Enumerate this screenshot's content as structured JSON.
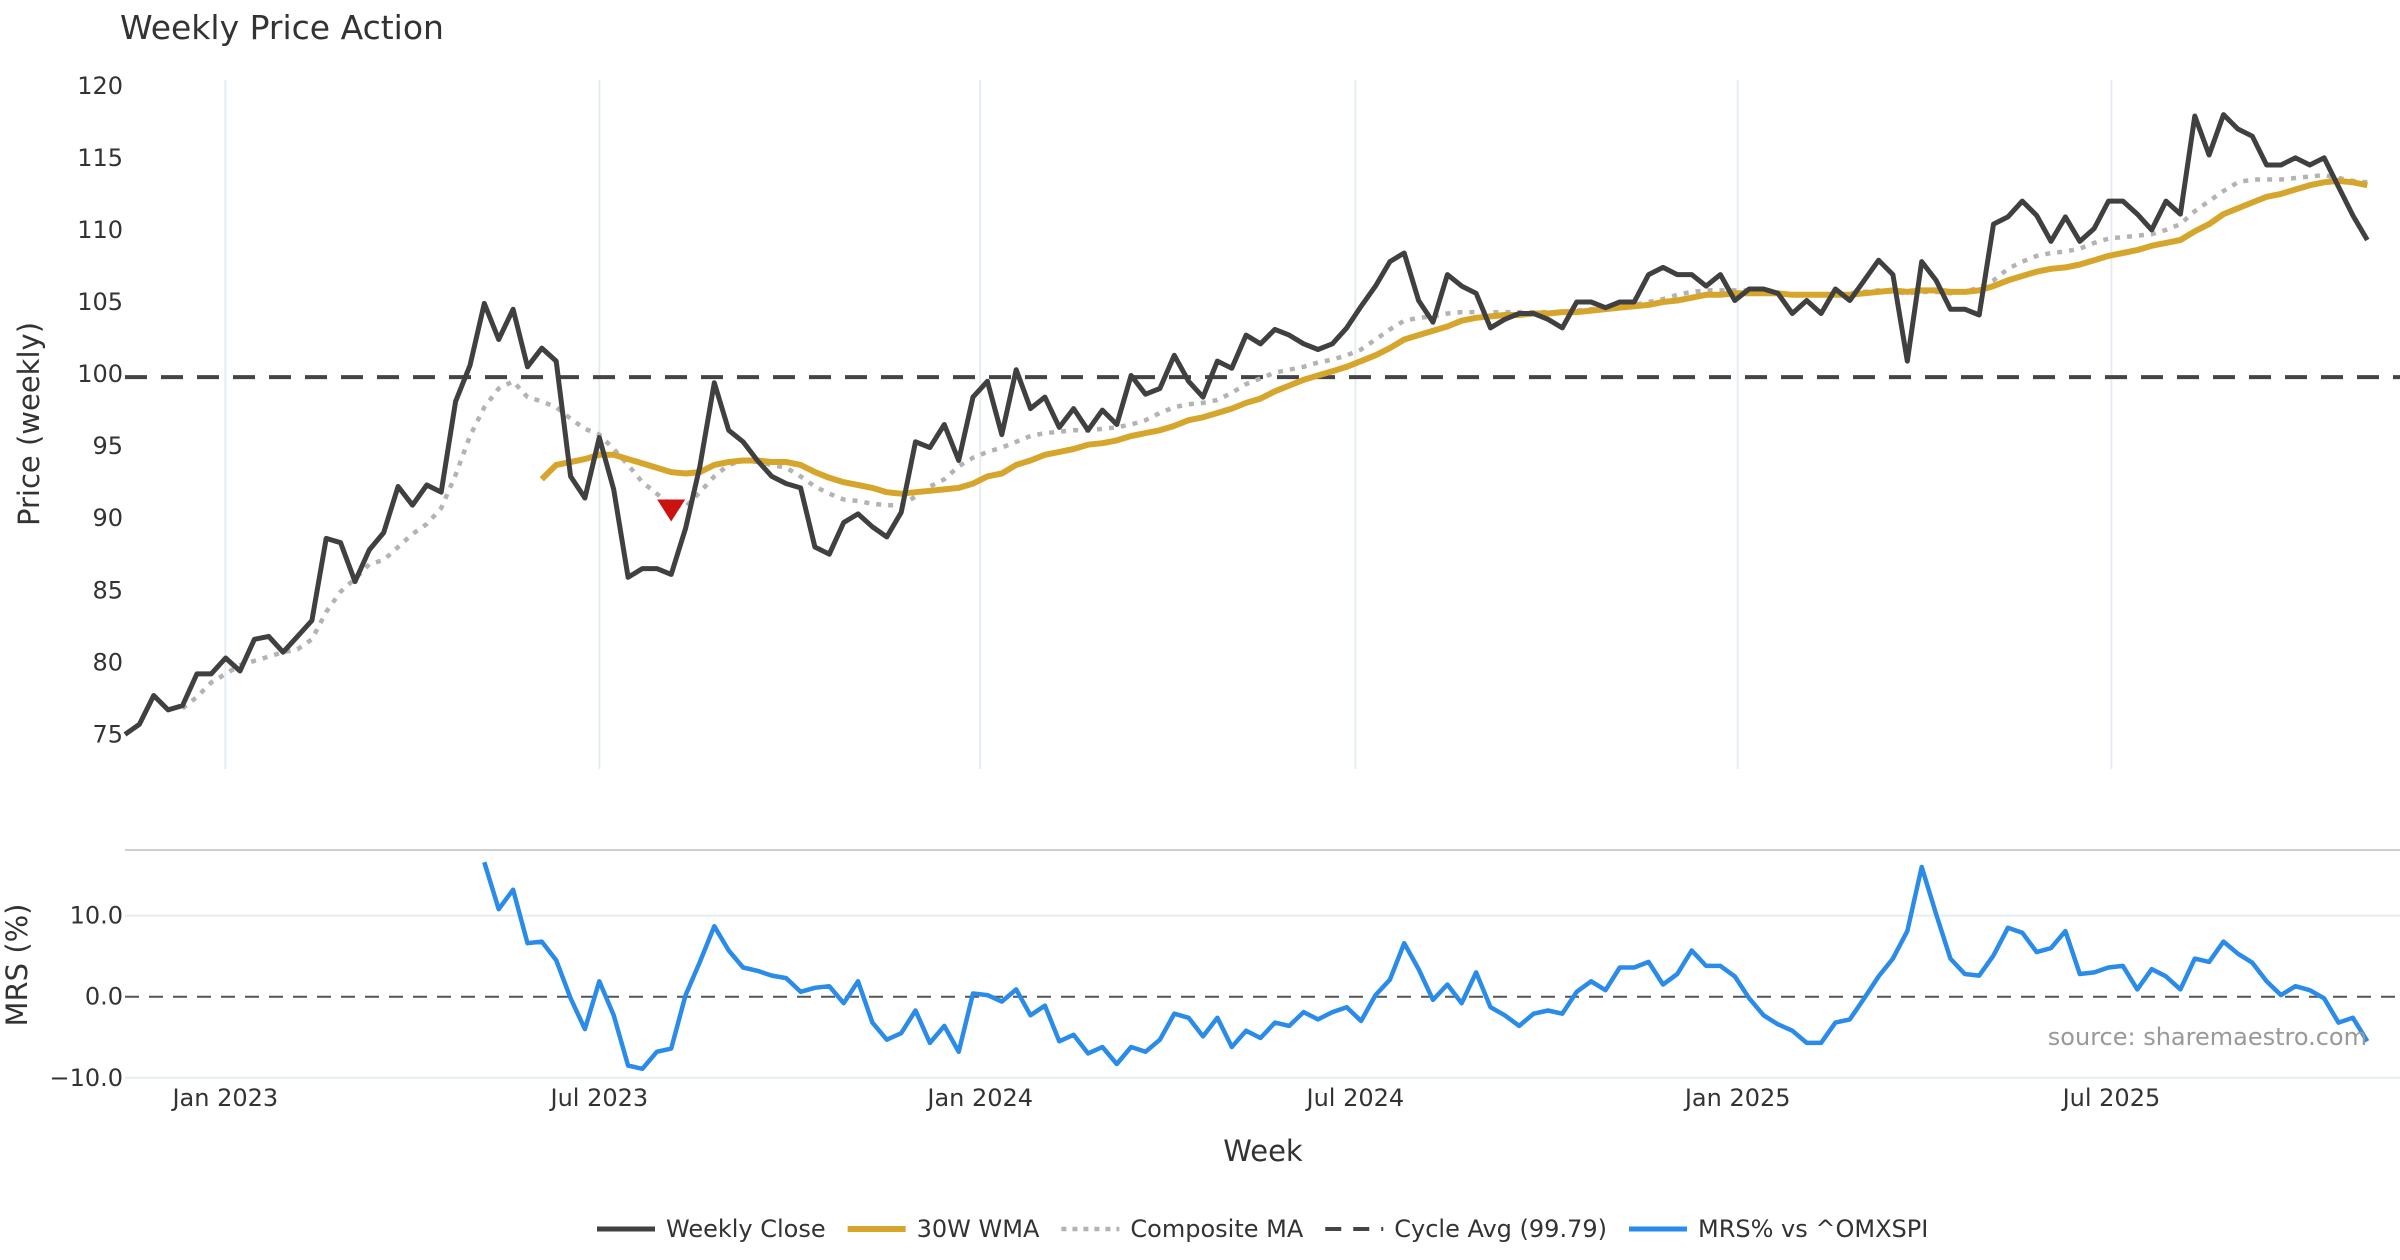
{
  "chart_data": {
    "type": "line",
    "title": "Weekly Price Action",
    "xlabel": "Week",
    "x_unit": "week index",
    "xlim": [
      0,
      158
    ],
    "x_ticks": [
      {
        "label": "Jan 2023",
        "week": 6.98
      },
      {
        "label": "Jul 2023",
        "week": 33.0
      },
      {
        "label": "Jan 2024",
        "week": 59.5
      },
      {
        "label": "Jul 2024",
        "week": 85.6
      },
      {
        "label": "Jan 2025",
        "week": 112.2
      },
      {
        "label": "Jul 2025",
        "week": 138.2
      }
    ],
    "grid": true,
    "legend_position": "bottom-center",
    "source": "source: sharemaestro.com",
    "price_panel": {
      "ylabel": "Price (weekly)",
      "ylim": [
        72.6,
        120.4
      ],
      "y_ticks": [
        "75",
        "80",
        "85",
        "90",
        "95",
        "100",
        "105",
        "110",
        "115",
        "120"
      ],
      "cycle_avg": 99.79,
      "series": [
        {
          "name": "Weekly Close",
          "color": "#404040",
          "start": 0,
          "values": [
            75.0,
            75.7,
            77.7,
            76.7,
            77.0,
            79.2,
            79.2,
            80.3,
            79.4,
            81.6,
            81.8,
            80.7,
            81.8,
            82.9,
            88.6,
            88.3,
            85.6,
            87.8,
            89.0,
            92.2,
            90.9,
            92.3,
            91.8,
            98.1,
            100.6,
            104.9,
            102.4,
            104.5,
            100.5,
            101.8,
            100.9,
            92.9,
            91.4,
            95.6,
            92.0,
            85.9,
            86.5,
            86.5,
            86.1,
            89.3,
            93.6,
            99.4,
            96.1,
            95.3,
            94.0,
            92.9,
            92.4,
            92.1,
            88.0,
            87.5,
            89.7,
            90.3,
            89.4,
            88.7,
            90.4,
            95.3,
            94.9,
            96.5,
            94.0,
            98.4,
            99.5,
            95.8,
            100.3,
            97.6,
            98.4,
            96.3,
            97.6,
            96.1,
            97.5,
            96.5,
            99.9,
            98.6,
            99.0,
            101.3,
            99.5,
            98.4,
            100.9,
            100.4,
            102.7,
            102.1,
            103.1,
            102.7,
            102.1,
            101.7,
            102.1,
            103.2,
            104.7,
            106.1,
            107.8,
            108.4,
            105.1,
            103.6,
            106.9,
            106.1,
            105.6,
            103.2,
            103.8,
            104.2,
            104.2,
            103.8,
            103.2,
            105.0,
            105.0,
            104.6,
            105.0,
            105.0,
            106.9,
            107.4,
            106.9,
            106.9,
            106.1,
            106.9,
            105.1,
            105.9,
            105.9,
            105.6,
            104.2,
            105.1,
            104.2,
            105.9,
            105.1,
            106.5,
            107.9,
            106.9,
            100.9,
            107.8,
            106.5,
            104.5,
            104.5,
            104.1,
            110.4,
            110.9,
            112.0,
            111.0,
            109.2,
            110.9,
            109.2,
            110.1,
            112.0,
            112.0,
            111.1,
            110.0,
            112.0,
            111.1,
            117.9,
            115.2,
            118.0,
            117.0,
            116.5,
            114.5,
            114.5,
            115.0,
            114.5,
            115.0,
            113.0,
            111.0,
            109.3
          ]
        },
        {
          "name": "30W WMA",
          "color": "#d6a62c",
          "start": 29,
          "values": [
            92.7,
            93.7,
            93.9,
            94.1,
            94.4,
            94.4,
            94.1,
            93.8,
            93.5,
            93.2,
            93.1,
            93.2,
            93.7,
            93.9,
            94.0,
            94.0,
            93.9,
            93.9,
            93.7,
            93.2,
            92.8,
            92.5,
            92.3,
            92.1,
            91.8,
            91.7,
            91.8,
            91.9,
            92.0,
            92.1,
            92.4,
            92.9,
            93.1,
            93.7,
            94.0,
            94.4,
            94.6,
            94.8,
            95.1,
            95.2,
            95.4,
            95.7,
            95.9,
            96.1,
            96.4,
            96.8,
            97.0,
            97.3,
            97.6,
            98.0,
            98.3,
            98.8,
            99.2,
            99.6,
            99.9,
            100.2,
            100.5,
            100.9,
            101.3,
            101.8,
            102.4,
            102.7,
            103.0,
            103.3,
            103.7,
            103.9,
            104.0,
            104.1,
            104.1,
            104.2,
            104.2,
            104.3,
            104.3,
            104.4,
            104.5,
            104.6,
            104.7,
            104.8,
            105.0,
            105.1,
            105.3,
            105.5,
            105.5,
            105.6,
            105.6,
            105.6,
            105.6,
            105.5,
            105.5,
            105.5,
            105.5,
            105.5,
            105.6,
            105.7,
            105.8,
            105.7,
            105.8,
            105.8,
            105.7,
            105.7,
            105.8,
            106.1,
            106.5,
            106.8,
            107.1,
            107.3,
            107.4,
            107.6,
            107.9,
            108.2,
            108.4,
            108.6,
            108.9,
            109.1,
            109.3,
            109.9,
            110.4,
            111.1,
            111.5,
            111.9,
            112.3,
            112.5,
            112.8,
            113.1,
            113.3,
            113.4,
            113.3,
            113.1
          ]
        },
        {
          "name": "Composite MA",
          "color": "#b3b3b3",
          "start": 4,
          "values": [
            76.8,
            77.6,
            78.6,
            79.2,
            79.8,
            80.1,
            80.4,
            80.7,
            80.9,
            81.6,
            83.5,
            84.9,
            85.8,
            86.8,
            87.1,
            88.0,
            88.9,
            89.6,
            90.7,
            93.0,
            95.7,
            97.7,
            99.0,
            99.5,
            98.4,
            98.1,
            97.7,
            96.9,
            96.2,
            95.8,
            94.8,
            93.7,
            92.5,
            91.7,
            90.9,
            90.8,
            91.8,
            92.9,
            93.7,
            94.0,
            93.9,
            93.7,
            93.5,
            92.9,
            92.2,
            91.7,
            91.3,
            91.2,
            91.0,
            90.9,
            90.9,
            91.5,
            92.2,
            92.7,
            93.6,
            94.2,
            94.6,
            94.9,
            95.3,
            95.7,
            95.9,
            96.0,
            96.1,
            96.1,
            96.2,
            96.3,
            96.5,
            96.8,
            97.3,
            97.7,
            97.9,
            98.0,
            98.2,
            98.7,
            99.3,
            99.7,
            100.1,
            100.3,
            100.5,
            100.8,
            101.0,
            101.3,
            101.7,
            102.4,
            103.1,
            103.7,
            103.9,
            104.0,
            104.2,
            104.3,
            104.3,
            104.3,
            104.3,
            104.3,
            104.3,
            104.3,
            104.3,
            104.4,
            104.5,
            104.6,
            104.7,
            104.8,
            105.0,
            105.2,
            105.5,
            105.7,
            105.8,
            105.8,
            105.8,
            105.8,
            105.7,
            105.6,
            105.5,
            105.5,
            105.5,
            105.5,
            105.6,
            105.7,
            105.8,
            105.7,
            105.6,
            105.7,
            105.7,
            105.6,
            105.7,
            106.0,
            106.5,
            107.3,
            107.8,
            108.2,
            108.4,
            108.5,
            108.7,
            109.1,
            109.4,
            109.5,
            109.6,
            109.7,
            110.0,
            110.4,
            111.3,
            112.0,
            112.7,
            113.3,
            113.5,
            113.5,
            113.5,
            113.6,
            113.7,
            113.8,
            113.6,
            113.4,
            113.3
          ]
        },
        {
          "name": "Cycle Avg (99.79)",
          "color": "#444444"
        }
      ],
      "markers": [
        {
          "type": "sell-triangle",
          "week": 38,
          "value": 90.6,
          "color": "#cc1111"
        }
      ]
    },
    "mrs_panel": {
      "ylabel": "MRS (%)",
      "ylim": [
        -10.4,
        18.1
      ],
      "y_ticks": [
        {
          "label": "10.0",
          "value": 10
        },
        {
          "label": "0.0",
          "value": 0
        },
        {
          "label": "−10.0",
          "value": -10
        }
      ],
      "series": [
        {
          "name": "MRS% vs ^OMXSPI",
          "color": "#2a8ce8",
          "start": 25,
          "values": [
            16.6,
            10.8,
            13.2,
            6.6,
            6.8,
            4.5,
            -0.2,
            -4.0,
            1.9,
            -2.3,
            -8.5,
            -8.9,
            -6.8,
            -6.4,
            0.2,
            4.3,
            8.7,
            5.7,
            3.6,
            3.2,
            2.6,
            2.3,
            0.6,
            1.1,
            1.3,
            -0.8,
            1.9,
            -3.2,
            -5.3,
            -4.5,
            -1.7,
            -5.7,
            -3.6,
            -6.8,
            0.4,
            0.2,
            -0.6,
            0.9,
            -2.3,
            -1.1,
            -5.5,
            -4.7,
            -7.0,
            -6.2,
            -8.3,
            -6.2,
            -6.8,
            -5.3,
            -2.1,
            -2.6,
            -4.9,
            -2.6,
            -6.2,
            -4.2,
            -5.1,
            -3.2,
            -3.6,
            -1.9,
            -2.8,
            -1.9,
            -1.3,
            -3.0,
            0.2,
            2.1,
            6.6,
            3.4,
            -0.4,
            1.5,
            -0.8,
            3.0,
            -1.3,
            -2.3,
            -3.6,
            -2.1,
            -1.7,
            -2.1,
            0.6,
            1.9,
            0.8,
            3.6,
            3.6,
            4.3,
            1.5,
            2.8,
            5.7,
            3.8,
            3.8,
            2.5,
            -0.2,
            -2.3,
            -3.4,
            -4.2,
            -5.7,
            -5.7,
            -3.2,
            -2.8,
            -0.2,
            2.5,
            4.7,
            8.1,
            16.0,
            10.2,
            4.7,
            2.8,
            2.6,
            5.1,
            8.5,
            7.9,
            5.5,
            6.0,
            8.1,
            2.8,
            3.0,
            3.6,
            3.8,
            0.9,
            3.4,
            2.5,
            0.9,
            4.7,
            4.3,
            6.8,
            5.3,
            4.2,
            1.9,
            0.2,
            1.3,
            0.8,
            -0.2,
            -3.2,
            -2.6,
            -5.5
          ]
        }
      ]
    }
  }
}
